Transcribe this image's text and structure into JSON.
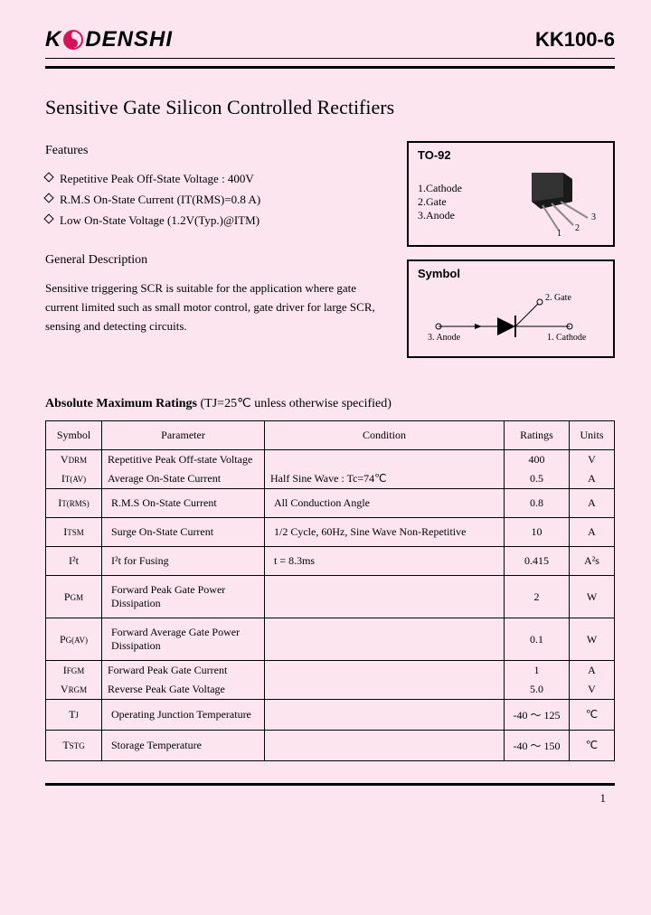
{
  "header": {
    "logo_left": "K",
    "logo_right": "DENSHI",
    "part_number": "KK100-6"
  },
  "title": "Sensitive Gate Silicon Controlled Rectifiers",
  "features": {
    "heading": "Features",
    "items": [
      "Repetitive Peak Off-State Voltage : 400V",
      "R.M.S On-State Current (IT(RMS)=0.8 A)",
      "Low On-State Voltage (1.2V(Typ.)@ITM)"
    ]
  },
  "general": {
    "heading": "General Description",
    "text": "Sensitive triggering SCR is suitable for the application where gate current limited such as small motor control, gate driver for large SCR, sensing and detecting circuits."
  },
  "package": {
    "label": "TO-92",
    "pins": [
      "1.Cathode",
      "2.Gate",
      "3.Anode"
    ],
    "lead_nums": [
      "1",
      "2",
      "3"
    ]
  },
  "symbol": {
    "label": "Symbol",
    "gate": "2. Gate",
    "anode": "3. Anode",
    "cathode": "1. Cathode"
  },
  "ratings": {
    "title_bold": "Absolute Maximum Ratings",
    "title_rest": " (TJ=25℃ unless otherwise specified)",
    "columns": [
      "Symbol",
      "Parameter",
      "Condition",
      "Ratings",
      "Units"
    ],
    "rows": [
      {
        "sym": "V",
        "sub": "DRM",
        "param": "Repetitive Peak Off-state Voltage",
        "cond": "",
        "rating": "400",
        "unit": "V"
      },
      {
        "sym": "I",
        "sub": "T(AV)",
        "param": "Average On-State Current",
        "cond": "Half Sine Wave : Tc=74℃",
        "rating": "0.5",
        "unit": "A"
      },
      {
        "sym": "I",
        "sub": "T(RMS)",
        "param": "R.M.S On-State Current",
        "cond": "All Conduction Angle",
        "rating": "0.8",
        "unit": "A"
      },
      {
        "sym": "I",
        "sub": "TSM",
        "param": "Surge On-State Current",
        "cond": "1/2 Cycle, 60Hz, Sine Wave Non-Repetitive",
        "rating": "10",
        "unit": "A"
      },
      {
        "sym": "I²t",
        "sub": "",
        "param": "I²t for Fusing",
        "cond": "t = 8.3ms",
        "rating": "0.415",
        "unit": "A²s"
      },
      {
        "sym": "P",
        "sub": "GM",
        "param": "Forward Peak Gate Power Dissipation",
        "cond": "",
        "rating": "2",
        "unit": "W"
      },
      {
        "sym": "P",
        "sub": "G(AV)",
        "param": "Forward Average Gate Power Dissipation",
        "cond": "",
        "rating": "0.1",
        "unit": "W"
      },
      {
        "sym": "I",
        "sub": "FGM",
        "param": "Forward Peak Gate Current",
        "cond": "",
        "rating": "1",
        "unit": "A"
      },
      {
        "sym": "V",
        "sub": "RGM",
        "param": "Reverse Peak Gate Voltage",
        "cond": "",
        "rating": "5.0",
        "unit": "V"
      },
      {
        "sym": "T",
        "sub": "J",
        "param": "Operating Junction Temperature",
        "cond": "",
        "rating": "-40 ～ 125",
        "unit": "℃"
      },
      {
        "sym": "T",
        "sub": "STG",
        "param": "Storage Temperature",
        "cond": "",
        "rating": "-40 ～ 150",
        "unit": "℃"
      }
    ]
  },
  "page": "1",
  "colors": {
    "accent": "#d4145a"
  }
}
